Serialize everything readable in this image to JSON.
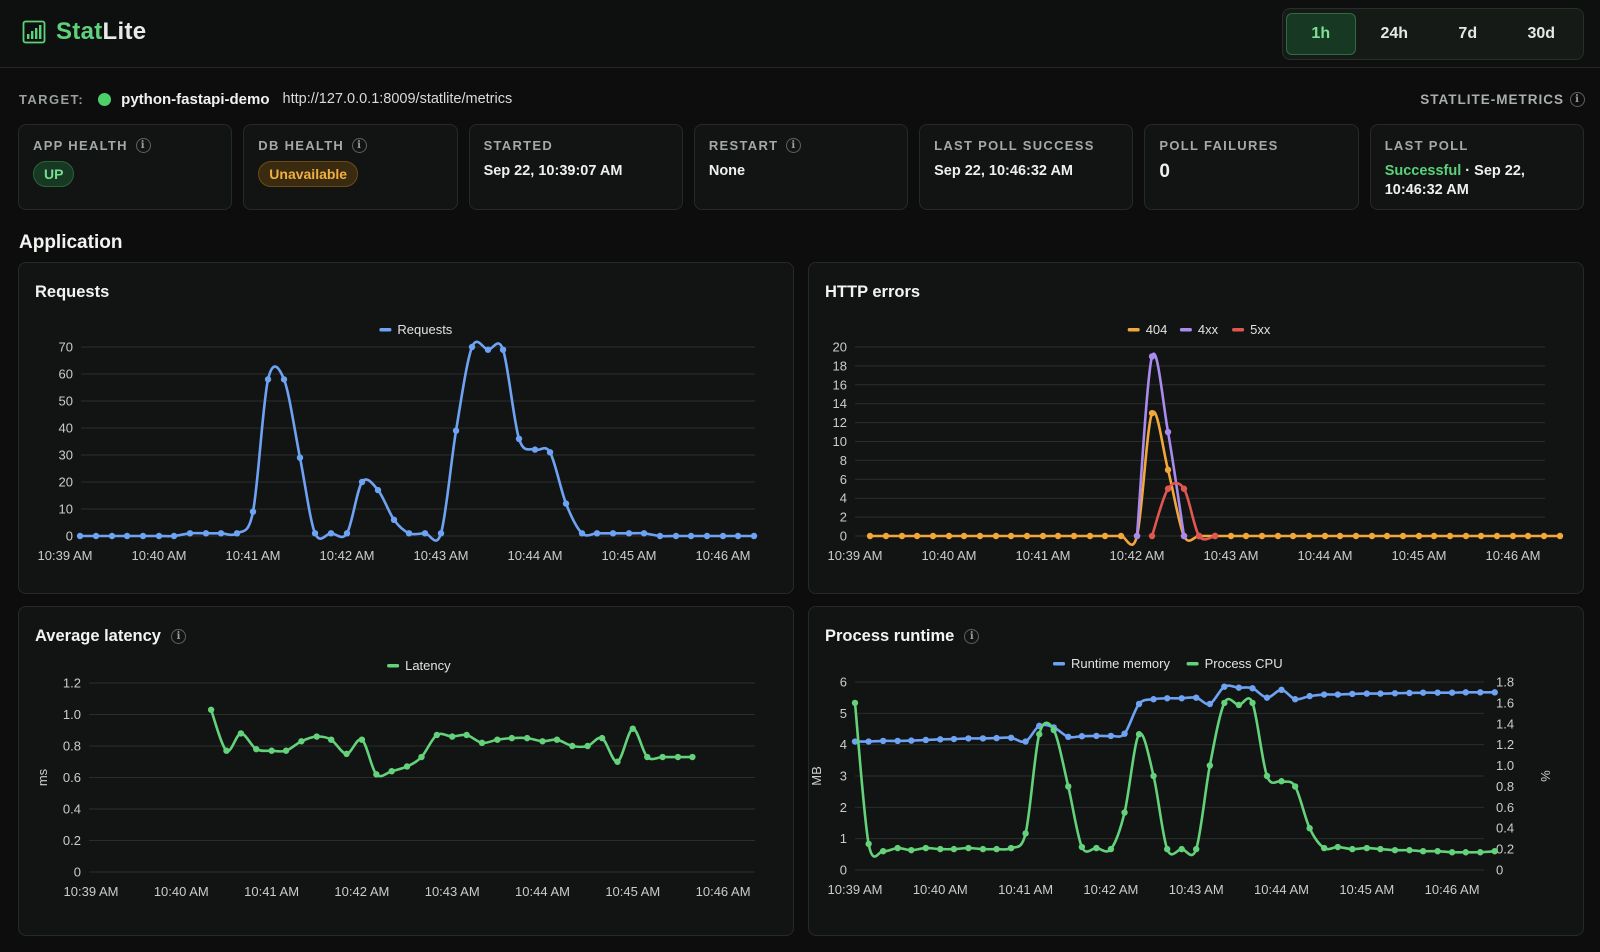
{
  "app": {
    "name_part1": "Stat",
    "name_part2": "Lite",
    "logo_icon": "bar-chart-icon"
  },
  "time_range": {
    "options": [
      "1h",
      "24h",
      "7d",
      "30d"
    ],
    "selected": "1h"
  },
  "target": {
    "label": "TARGET:",
    "name": "python-fastapi-demo",
    "url": "http://127.0.0.1:8009/statlite/metrics",
    "source": "STATLITE-METRICS",
    "status_color": "#4cd06a"
  },
  "cards": {
    "app_health": {
      "title": "APP HEALTH",
      "value": "UP"
    },
    "db_health": {
      "title": "DB HEALTH",
      "value": "Unavailable"
    },
    "started": {
      "title": "STARTED",
      "value": "Sep 22, 10:39:07 AM"
    },
    "restart": {
      "title": "RESTART",
      "value": "None"
    },
    "last_poll_success": {
      "title": "LAST POLL SUCCESS",
      "value": "Sep 22, 10:46:32 AM"
    },
    "poll_failures": {
      "title": "POLL FAILURES",
      "value": "0"
    },
    "last_poll": {
      "title": "LAST POLL",
      "status": "Successful",
      "sep": " · ",
      "value": "Sep 22, 10:46:32 AM"
    }
  },
  "section": {
    "title": "Application"
  },
  "colors": {
    "blue": "#6ea3f4",
    "green": "#63d27a",
    "orange": "#f2a73b",
    "purple": "#a98bef",
    "red": "#e0574f"
  },
  "chart_data": [
    {
      "id": "requests",
      "title": "Requests",
      "type": "line",
      "x_ticks": [
        "10:39 AM",
        "10:40 AM",
        "10:41 AM",
        "10:42 AM",
        "10:43 AM",
        "10:44 AM",
        "10:45 AM",
        "10:46 AM"
      ],
      "x_range_min": [
        0,
        7.4
      ],
      "y_ticks": [
        "0",
        "10",
        "20",
        "30",
        "40",
        "50",
        "60",
        "70"
      ],
      "ylim": [
        0,
        70
      ],
      "legend": "top-center",
      "series": [
        {
          "name": "Requests",
          "color": "#6ea3f4",
          "x": [
            0.16,
            0.33,
            0.5,
            0.66,
            0.83,
            1.0,
            1.16,
            1.33,
            1.5,
            1.66,
            1.83,
            2.0,
            2.16,
            2.33,
            2.5,
            2.66,
            2.83,
            3.0,
            3.16,
            3.33,
            3.5,
            3.66,
            3.83,
            4.0,
            4.16,
            4.33,
            4.5,
            4.66,
            4.83,
            5.0,
            5.16,
            5.33,
            5.5,
            5.66,
            5.83,
            6.0,
            6.16,
            6.33,
            6.5,
            6.66,
            6.83,
            7.0,
            7.16,
            7.33
          ],
          "values": [
            0,
            0,
            0,
            0,
            0,
            0,
            0,
            1,
            1,
            1,
            1,
            9,
            58,
            58,
            29,
            1,
            1,
            1,
            20,
            17,
            6,
            1,
            1,
            1,
            39,
            70,
            69,
            69,
            36,
            32,
            31,
            12,
            1,
            1,
            1,
            1,
            1,
            0,
            0,
            0,
            0,
            0,
            0,
            0
          ]
        }
      ]
    },
    {
      "id": "http-errors",
      "title": "HTTP errors",
      "type": "line",
      "x_ticks": [
        "10:39 AM",
        "10:40 AM",
        "10:41 AM",
        "10:42 AM",
        "10:43 AM",
        "10:44 AM",
        "10:45 AM",
        "10:46 AM"
      ],
      "y_ticks": [
        "0",
        "2",
        "4",
        "6",
        "8",
        "10",
        "12",
        "14",
        "16",
        "18",
        "20"
      ],
      "ylim": [
        0,
        20
      ],
      "legend": "top-center",
      "series": [
        {
          "name": "404",
          "color": "#f2a73b",
          "x": [
            0.16,
            0.33,
            0.5,
            0.66,
            0.83,
            1.0,
            1.16,
            1.33,
            1.5,
            1.66,
            1.83,
            2.0,
            2.16,
            2.33,
            2.5,
            2.66,
            2.83,
            3.0,
            3.16,
            3.33,
            3.5,
            3.66,
            3.83,
            4.0,
            4.16,
            4.33,
            4.5,
            4.66,
            4.83,
            5.0,
            5.16,
            5.33,
            5.5,
            5.66,
            5.83,
            6.0,
            6.16,
            6.33,
            6.5,
            6.66,
            6.83,
            7.0,
            7.16,
            7.33,
            7.5
          ],
          "values": [
            0,
            0,
            0,
            0,
            0,
            0,
            0,
            0,
            0,
            0,
            0,
            0,
            0,
            0,
            0,
            0,
            0,
            0,
            13,
            7,
            0,
            0,
            0,
            0,
            0,
            0,
            0,
            0,
            0,
            0,
            0,
            0,
            0,
            0,
            0,
            0,
            0,
            0,
            0,
            0,
            0,
            0,
            0,
            0,
            0
          ]
        },
        {
          "name": "4xx",
          "color": "#a98bef",
          "x": [
            3.0,
            3.16,
            3.33,
            3.5
          ],
          "values": [
            0,
            19,
            11,
            0
          ]
        },
        {
          "name": "5xx",
          "color": "#e0574f",
          "x": [
            3.16,
            3.33,
            3.5,
            3.66,
            3.83
          ],
          "values": [
            0,
            5,
            5,
            0,
            0
          ]
        }
      ]
    },
    {
      "id": "average-latency",
      "title": "Average latency",
      "type": "line",
      "x_ticks": [
        "10:39 AM",
        "10:40 AM",
        "10:41 AM",
        "10:42 AM",
        "10:43 AM",
        "10:44 AM",
        "10:45 AM",
        "10:46 AM"
      ],
      "y_ticks": [
        "0",
        "0.2",
        "0.4",
        "0.6",
        "0.8",
        "1.0",
        "1.2"
      ],
      "ylim": [
        0,
        1.2
      ],
      "ylabel": "ms",
      "legend": "top-center",
      "series": [
        {
          "name": "Latency",
          "color": "#63d27a",
          "x": [
            1.33,
            1.5,
            1.66,
            1.83,
            2.0,
            2.16,
            2.33,
            2.5,
            2.66,
            2.83,
            3.0,
            3.16,
            3.33,
            3.5,
            3.66,
            3.83,
            4.0,
            4.16,
            4.33,
            4.5,
            4.66,
            4.83,
            5.0,
            5.16,
            5.33,
            5.5,
            5.66,
            5.83,
            6.0,
            6.16,
            6.33,
            6.5,
            6.66
          ],
          "values": [
            1.03,
            0.77,
            0.88,
            0.78,
            0.77,
            0.77,
            0.83,
            0.86,
            0.84,
            0.75,
            0.84,
            0.62,
            0.64,
            0.67,
            0.73,
            0.87,
            0.86,
            0.87,
            0.82,
            0.84,
            0.85,
            0.85,
            0.83,
            0.84,
            0.8,
            0.8,
            0.85,
            0.7,
            0.91,
            0.73,
            0.73,
            0.73,
            0.73
          ]
        }
      ]
    },
    {
      "id": "process-runtime",
      "title": "Process runtime",
      "type": "line",
      "x_ticks": [
        "10:39 AM",
        "10:40 AM",
        "10:41 AM",
        "10:42 AM",
        "10:43 AM",
        "10:44 AM",
        "10:45 AM",
        "10:46 AM"
      ],
      "y_ticks": [
        "0",
        "1",
        "2",
        "3",
        "4",
        "5",
        "6"
      ],
      "y2_ticks": [
        "0",
        "0.2",
        "0.4",
        "0.6",
        "0.8",
        "1.0",
        "1.2",
        "1.4",
        "1.6",
        "1.8"
      ],
      "ylim": [
        0,
        6
      ],
      "y2lim": [
        0,
        1.8
      ],
      "ylabel": "MB",
      "y2label": "%",
      "legend": "top-center",
      "series": [
        {
          "name": "Runtime memory",
          "color": "#6ea3f4",
          "axis": "left",
          "x": [
            0,
            0.16,
            0.33,
            0.5,
            0.66,
            0.83,
            1.0,
            1.16,
            1.33,
            1.5,
            1.66,
            1.83,
            2.0,
            2.16,
            2.33,
            2.5,
            2.66,
            2.83,
            3.0,
            3.16,
            3.33,
            3.5,
            3.66,
            3.83,
            4.0,
            4.16,
            4.33,
            4.5,
            4.66,
            4.83,
            5.0,
            5.16,
            5.33,
            5.5,
            5.66,
            5.83,
            6.0,
            6.16,
            6.33,
            6.5,
            6.66,
            6.83,
            7.0,
            7.16,
            7.33,
            7.5
          ],
          "values": [
            4.1,
            4.1,
            4.12,
            4.12,
            4.13,
            4.15,
            4.17,
            4.18,
            4.2,
            4.2,
            4.21,
            4.22,
            4.1,
            4.6,
            4.55,
            4.25,
            4.27,
            4.28,
            4.28,
            4.35,
            5.3,
            5.45,
            5.48,
            5.48,
            5.5,
            5.3,
            5.85,
            5.82,
            5.8,
            5.5,
            5.75,
            5.45,
            5.55,
            5.6,
            5.6,
            5.62,
            5.63,
            5.63,
            5.64,
            5.65,
            5.66,
            5.66,
            5.66,
            5.67,
            5.67,
            5.67
          ]
        },
        {
          "name": "Process CPU",
          "color": "#63d27a",
          "axis": "right",
          "x": [
            0,
            0.16,
            0.33,
            0.5,
            0.66,
            0.83,
            1.0,
            1.16,
            1.33,
            1.5,
            1.66,
            1.83,
            2.0,
            2.16,
            2.33,
            2.5,
            2.66,
            2.83,
            3.0,
            3.16,
            3.33,
            3.5,
            3.66,
            3.83,
            4.0,
            4.16,
            4.33,
            4.5,
            4.66,
            4.83,
            5.0,
            5.16,
            5.33,
            5.5,
            5.66,
            5.83,
            6.0,
            6.16,
            6.33,
            6.5,
            6.66,
            6.83,
            7.0,
            7.16,
            7.33,
            7.5
          ],
          "values": [
            1.6,
            0.25,
            0.18,
            0.21,
            0.19,
            0.21,
            0.2,
            0.2,
            0.21,
            0.2,
            0.2,
            0.21,
            0.35,
            1.3,
            1.34,
            0.8,
            0.22,
            0.21,
            0.2,
            0.55,
            1.3,
            0.9,
            0.2,
            0.2,
            0.2,
            1.0,
            1.6,
            1.58,
            1.6,
            0.9,
            0.85,
            0.8,
            0.4,
            0.21,
            0.22,
            0.2,
            0.21,
            0.2,
            0.19,
            0.19,
            0.18,
            0.18,
            0.17,
            0.17,
            0.17,
            0.18
          ]
        }
      ]
    }
  ]
}
